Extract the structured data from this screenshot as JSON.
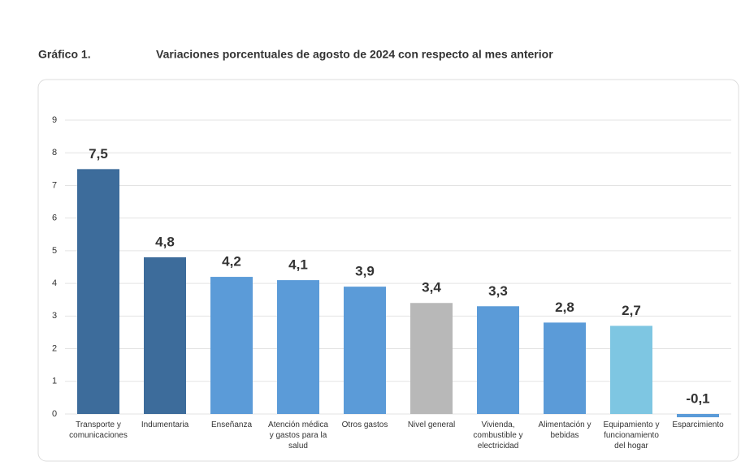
{
  "chart_data": {
    "type": "bar",
    "label": "Gráfico 1.",
    "title": "Variaciones porcentuales de agosto de 2024 con respecto al mes anterior",
    "categories": [
      "Transporte y\ncomunicaciones",
      "Indumentaria",
      "Enseñanza",
      "Atención médica\ny gastos para la\nsalud",
      "Otros gastos",
      "Nivel general",
      "Vivienda,\ncombustible y\nelectricidad",
      "Alimentación y\nbebidas",
      "Equipamiento y\nfuncionamiento\ndel hogar",
      "Esparcimiento"
    ],
    "values": [
      7.5,
      4.8,
      4.2,
      4.1,
      3.9,
      3.4,
      3.3,
      2.8,
      2.7,
      -0.1
    ],
    "value_labels": [
      "7,5",
      "4,8",
      "4,2",
      "4,1",
      "3,9",
      "3,4",
      "3,3",
      "2,8",
      "2,7",
      "-0,1"
    ],
    "colors": [
      "#3d6c9b",
      "#3d6c9b",
      "#5b9bd8",
      "#5b9bd8",
      "#5b9bd8",
      "#b8b8b8",
      "#5b9bd8",
      "#5b9bd8",
      "#7ec6e2",
      "#5b9bd8"
    ],
    "ylim": [
      0,
      9
    ],
    "yticks": [
      0,
      1,
      2,
      3,
      4,
      5,
      6,
      7,
      8,
      9
    ],
    "grid": true
  }
}
